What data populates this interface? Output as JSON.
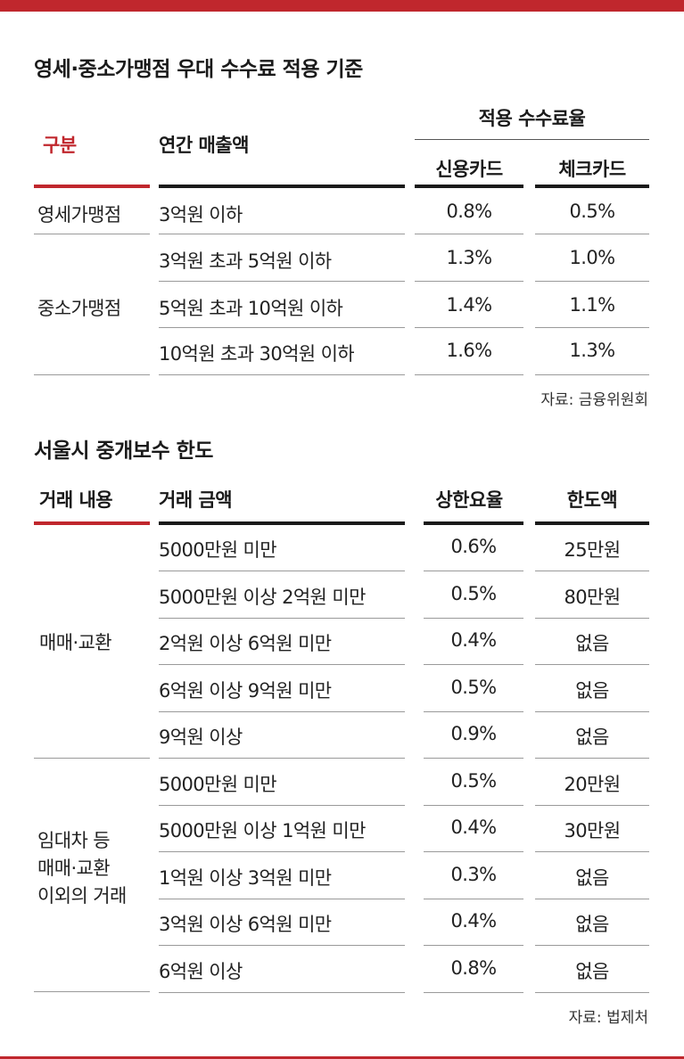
{
  "table1": {
    "title": "영세·중소가맹점 우대 수수료 적용 기준",
    "headers": {
      "category": "구분",
      "annual_sales": "연간 매출액",
      "fee_rate": "적용 수수료율",
      "credit_card": "신용카드",
      "check_card": "체크카드"
    },
    "groups": [
      {
        "name": "영세가맹점"
      },
      {
        "name": "중소가맹점"
      }
    ],
    "rows": [
      {
        "sales": "3억원 이하",
        "credit": "0.8%",
        "check": "0.5%"
      },
      {
        "sales": "3억원 초과 5억원 이하",
        "credit": "1.3%",
        "check": "1.0%"
      },
      {
        "sales": "5억원 초과 10억원 이하",
        "credit": "1.4%",
        "check": "1.1%"
      },
      {
        "sales": "10억원 초과 30억원 이하",
        "credit": "1.6%",
        "check": "1.3%"
      }
    ],
    "source": "자료: 금융위원회"
  },
  "table2": {
    "title": "서울시 중개보수 한도",
    "headers": {
      "deal_type": "거래 내용",
      "deal_amount": "거래 금액",
      "max_rate": "상한요율",
      "limit": "한도액"
    },
    "groups": [
      {
        "lines": [
          "매매·교환"
        ]
      },
      {
        "lines": [
          "임대차 등",
          "매매·교환",
          "이외의 거래"
        ]
      }
    ],
    "rows": [
      {
        "amount": "5000만원 미만",
        "rate": "0.6%",
        "limit": "25만원"
      },
      {
        "amount": "5000만원 이상 2억원 미만",
        "rate": "0.5%",
        "limit": "80만원"
      },
      {
        "amount": "2억원 이상 6억원 미만",
        "rate": "0.4%",
        "limit": "없음"
      },
      {
        "amount": "6억원 이상 9억원 미만",
        "rate": "0.5%",
        "limit": "없음"
      },
      {
        "amount": "9억원 이상",
        "rate": "0.9%",
        "limit": "없음"
      },
      {
        "amount": "5000만원 미만",
        "rate": "0.5%",
        "limit": "20만원"
      },
      {
        "amount": "5000만원 이상 1억원 미만",
        "rate": "0.4%",
        "limit": "30만원"
      },
      {
        "amount": "1억원 이상 3억원 미만",
        "rate": "0.3%",
        "limit": "없음"
      },
      {
        "amount": "3억원 이상 6억원 미만",
        "rate": "0.4%",
        "limit": "없음"
      },
      {
        "amount": "6억원 이상",
        "rate": "0.8%",
        "limit": "없음"
      }
    ],
    "source": "자료: 법제처"
  },
  "colors": {
    "accent": "#c0272d",
    "rule": "#1a1a1a",
    "divider": "#9a9a9a"
  }
}
